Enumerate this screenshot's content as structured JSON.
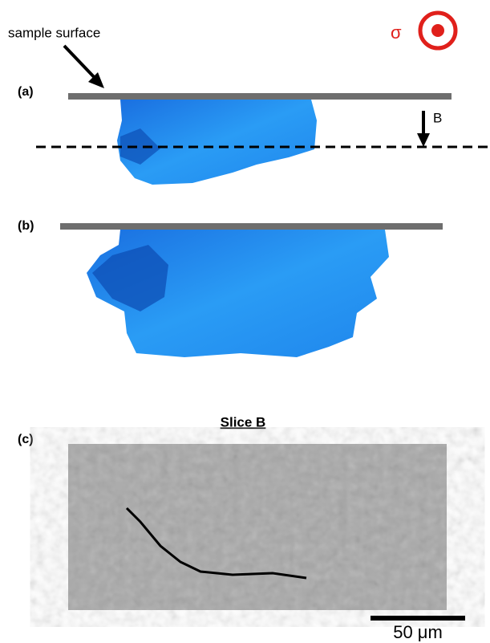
{
  "annotations": {
    "surface_label": "sample surface",
    "stress_symbol": "σ",
    "slice_marker": "B"
  },
  "panels": [
    {
      "label": "(a)"
    },
    {
      "label": "(b)"
    },
    {
      "label": "(c)",
      "title": "Slice B",
      "scale_bar": "50 μm"
    }
  ]
}
